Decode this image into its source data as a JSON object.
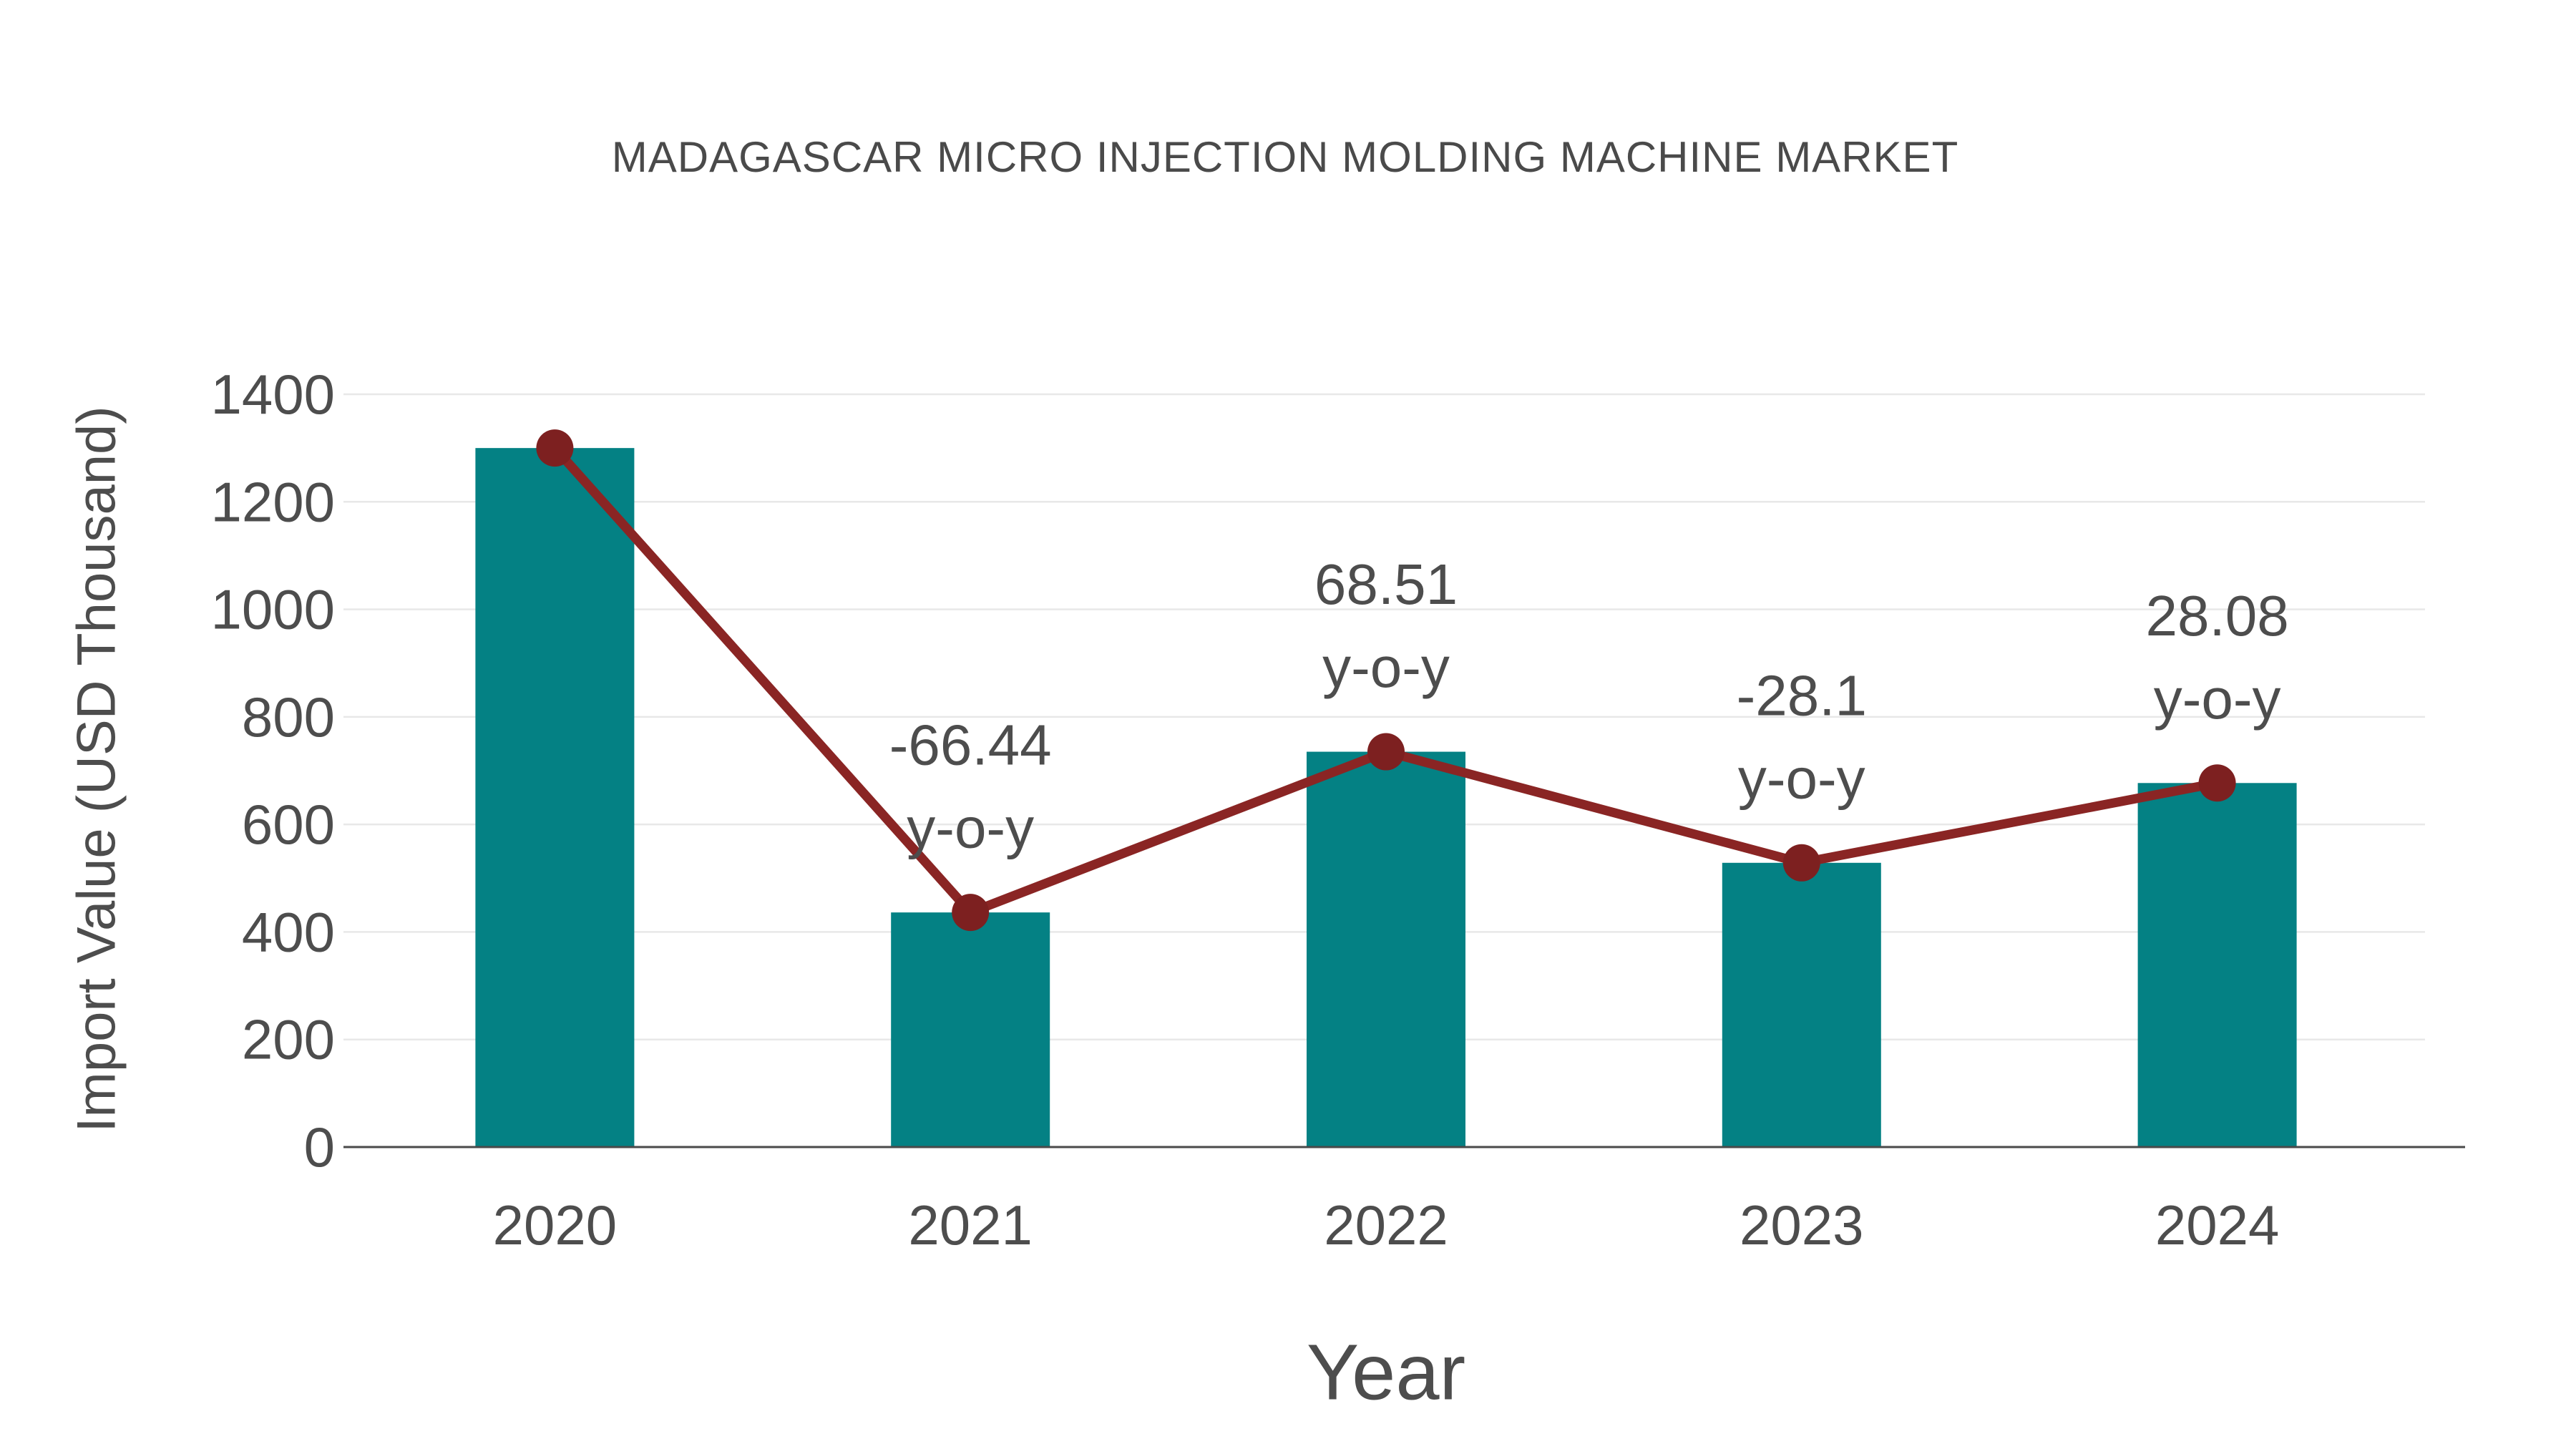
{
  "title": "MADAGASCAR MICRO INJECTION MOLDING MACHINE MARKET",
  "chart_data": {
    "type": "bar",
    "subtype": "vertical bars with line-and-marker overlay",
    "title": "MADAGASCAR MICRO INJECTION MOLDING MACHINE MARKET",
    "xlabel": "Year",
    "ylabel": "Import Value (USD Thousand)",
    "categories": [
      "2020",
      "2021",
      "2022",
      "2023",
      "2024"
    ],
    "series": [
      {
        "name": "Import Value bars",
        "type": "bar",
        "values": [
          1300,
          436.3,
          735.2,
          528.6,
          677
        ]
      },
      {
        "name": "Import Value trend line",
        "type": "line",
        "values": [
          1300,
          436.3,
          735.2,
          528.6,
          677
        ]
      }
    ],
    "annotations": [
      {
        "category": "2021",
        "value_label": "-66.44",
        "suffix_label": "y-o-y"
      },
      {
        "category": "2022",
        "value_label": "68.51",
        "suffix_label": "y-o-y"
      },
      {
        "category": "2023",
        "value_label": "-28.1",
        "suffix_label": "y-o-y"
      },
      {
        "category": "2024",
        "value_label": "28.08",
        "suffix_label": "y-o-y"
      }
    ],
    "ylim": [
      0,
      1400
    ],
    "ytick_step": 200,
    "yticks": [
      "0",
      "200",
      "400",
      "600",
      "800",
      "1000",
      "1200",
      "1400"
    ],
    "grid": "horizontal",
    "legend": "none",
    "colors": {
      "bar": "#048184",
      "line": "#8a2524",
      "marker": "#7d2020",
      "grid": "#e8e8e8",
      "axis": "#4a4a4a",
      "text": "#4d4d4d",
      "annotation": "#4d4d4d",
      "background": "#ffffff"
    }
  }
}
